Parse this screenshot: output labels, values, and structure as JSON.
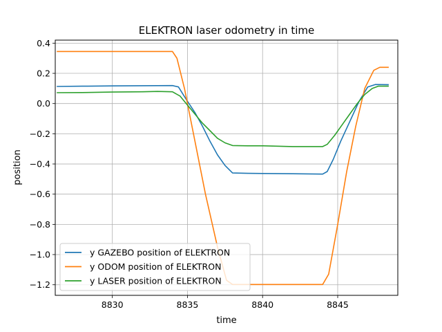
{
  "chart_data": {
    "type": "line",
    "title": "ELEKTRON laser odometry in time",
    "xlabel": "time",
    "ylabel": "position",
    "xlim": [
      8826.2,
      8849.0
    ],
    "ylim": [
      -1.27,
      0.42
    ],
    "xticks": [
      8830,
      8835,
      8840,
      8845
    ],
    "xtick_labels": [
      "8830",
      "8835",
      "8840",
      "8845"
    ],
    "yticks": [
      0.4,
      0.2,
      0.0,
      -0.2,
      -0.4,
      -0.6,
      -0.8,
      -1.0,
      -1.2
    ],
    "ytick_labels": [
      "0.4",
      "0.2",
      "0.0",
      "−0.2",
      "−0.4",
      "−0.6",
      "−0.8",
      "−1.0",
      "−1.2"
    ],
    "grid": true,
    "legend_position": "lower-left",
    "series": [
      {
        "name": "y GAZEBO position of ELEKTRON",
        "color": "#1f77b4",
        "x": [
          8826.3,
          8828,
          8830,
          8832,
          8834,
          8834.4,
          8834.9,
          8835.5,
          8836,
          8836.5,
          8837,
          8837.5,
          8838,
          8839,
          8840,
          8842,
          8844,
          8844.3,
          8844.7,
          8845.2,
          8845.8,
          8846.4,
          8847,
          8847.5,
          8848.4
        ],
        "y": [
          0.113,
          0.115,
          0.117,
          0.118,
          0.119,
          0.11,
          0.03,
          -0.06,
          -0.15,
          -0.25,
          -0.34,
          -0.41,
          -0.46,
          -0.462,
          -0.463,
          -0.465,
          -0.467,
          -0.45,
          -0.37,
          -0.25,
          -0.12,
          0.01,
          0.11,
          0.126,
          0.125
        ]
      },
      {
        "name": "y ODOM position of ELEKTRON",
        "color": "#ff7f0e",
        "x": [
          8826.3,
          8828,
          8830,
          8832,
          8834,
          8834.3,
          8834.8,
          8835.5,
          8836.2,
          8837,
          8837.6,
          8838,
          8840,
          8842,
          8844,
          8844.4,
          8845,
          8845.6,
          8846.2,
          8846.8,
          8847.4,
          8847.8,
          8848.4
        ],
        "y": [
          0.345,
          0.345,
          0.345,
          0.345,
          0.345,
          0.3,
          0.1,
          -0.25,
          -0.6,
          -0.95,
          -1.17,
          -1.198,
          -1.198,
          -1.198,
          -1.198,
          -1.13,
          -0.8,
          -0.45,
          -0.15,
          0.1,
          0.22,
          0.24,
          0.24
        ]
      },
      {
        "name": "y LASER position of ELEKTRON",
        "color": "#2ca02c",
        "x": [
          8826.3,
          8828,
          8830,
          8832,
          8833,
          8834,
          8834.5,
          8835,
          8835.5,
          8836,
          8836.5,
          8837,
          8837.5,
          8838,
          8839,
          8840,
          8842,
          8844,
          8844.3,
          8844.8,
          8845.3,
          8845.8,
          8846.3,
          8846.8,
          8847.3,
          8847.7,
          8848.4
        ],
        "y": [
          0.072,
          0.073,
          0.076,
          0.078,
          0.08,
          0.078,
          0.05,
          -0.01,
          -0.07,
          -0.13,
          -0.18,
          -0.23,
          -0.26,
          -0.278,
          -0.28,
          -0.28,
          -0.285,
          -0.285,
          -0.27,
          -0.21,
          -0.14,
          -0.07,
          0.0,
          0.06,
          0.1,
          0.115,
          0.115
        ]
      }
    ]
  }
}
